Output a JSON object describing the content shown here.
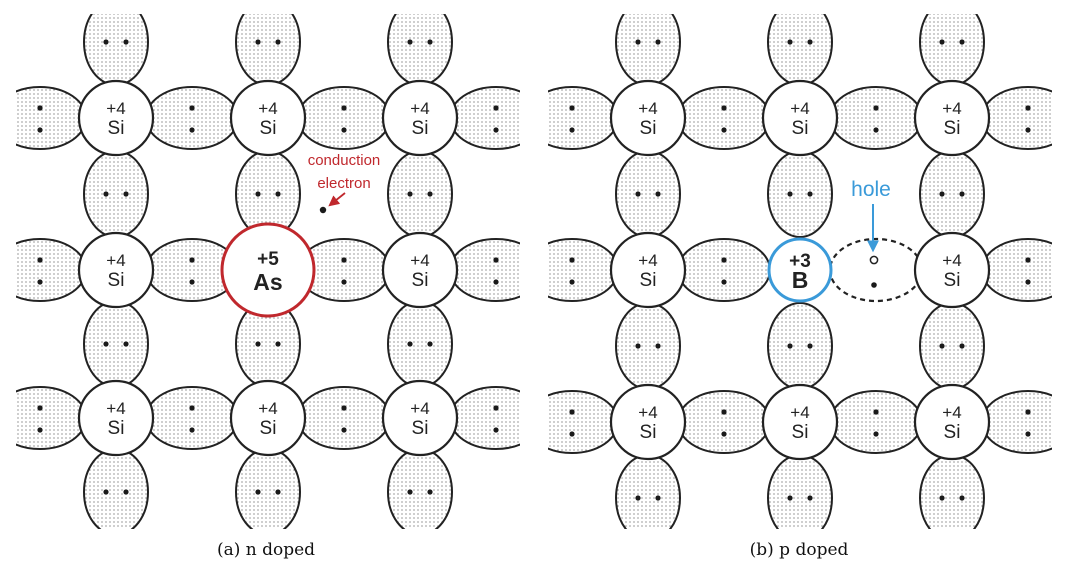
{
  "panels": [
    {
      "id": "n",
      "caption": "(a) n doped",
      "dopant": {
        "charge": "+5",
        "symbol": "As"
      },
      "annotation": [
        "conduction",
        "electron"
      ]
    },
    {
      "id": "p",
      "caption": "(b) p doped",
      "dopant": {
        "charge": "+3",
        "symbol": "B"
      },
      "annotation": [
        "hole"
      ]
    }
  ],
  "host": {
    "charge": "+4",
    "symbol": "Si"
  },
  "colors": {
    "as_outline": "#c0282d",
    "b_outline": "#3a9ad9",
    "conduction_label": "#c0282d",
    "hole_label": "#3a9ad9",
    "bond_dots": "#1a1a1a"
  }
}
